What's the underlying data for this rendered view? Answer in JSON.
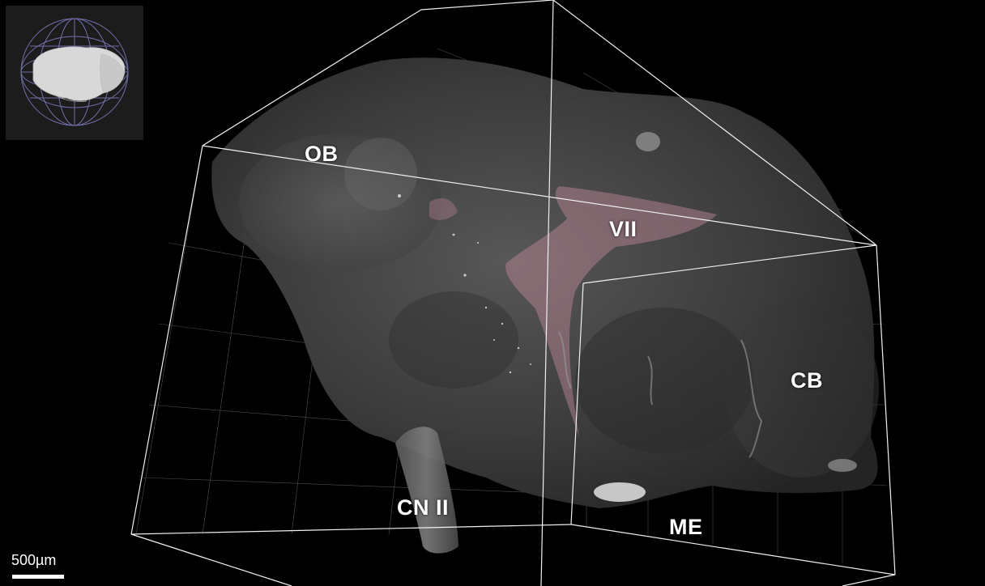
{
  "viewer": {
    "background_color": "#000000",
    "volume_color": "#5a5a5a",
    "highlight_color": "#c48a9a",
    "grid_color": "#e6e6e6"
  },
  "labels": {
    "ob": "OB",
    "vii": "VII",
    "cb": "CB",
    "cn2": "CN II",
    "me": "ME"
  },
  "orientation_widget": {
    "icon": "brain-orientation-icon",
    "sphere_color": "#7a78b8",
    "brain_color": "#d8d8d8"
  },
  "scale_bar": {
    "label": "500µm"
  }
}
